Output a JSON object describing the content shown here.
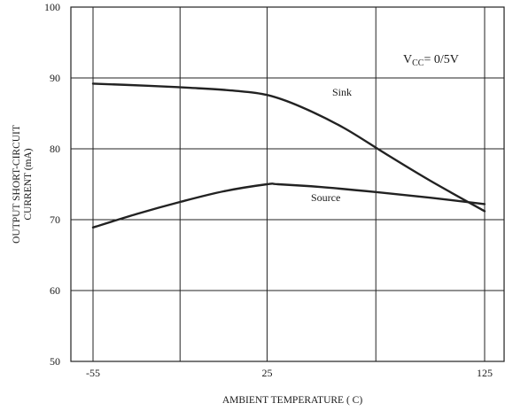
{
  "chart_data": {
    "type": "line",
    "xlabel": "AMBIENT TEMPERATURE ( C)",
    "ylabel_lines": [
      "OUTPUT SHORT-CIRCUIT",
      "CURRENT (mA)"
    ],
    "xlim": [
      -55,
      125
    ],
    "ylim": [
      50,
      100
    ],
    "x_ticks": [
      -55,
      25,
      125
    ],
    "x_tick_labels": [
      "-55",
      "25",
      "125"
    ],
    "y_ticks": [
      50,
      60,
      70,
      80,
      90,
      100
    ],
    "y_tick_labels": [
      "50",
      "60",
      "70",
      "80",
      "90",
      "100"
    ],
    "grid": true,
    "condition": {
      "prefix": "V",
      "subscript": "CC",
      "suffix": "= 0/5V"
    },
    "series": [
      {
        "name": "Sink",
        "x": [
          -55,
          -30,
          -10,
          10,
          25,
          40,
          60,
          80,
          100,
          125
        ],
        "y": [
          89.2,
          88.9,
          88.6,
          88.2,
          87.6,
          86.0,
          83.0,
          79.2,
          75.5,
          71.2
        ]
      },
      {
        "name": "Source",
        "x": [
          -55,
          -35,
          -15,
          5,
          25,
          30,
          50,
          75,
          100,
          125
        ],
        "y": [
          68.9,
          70.8,
          72.5,
          74.0,
          75.0,
          75.0,
          74.6,
          73.9,
          73.1,
          72.2
        ]
      }
    ]
  }
}
